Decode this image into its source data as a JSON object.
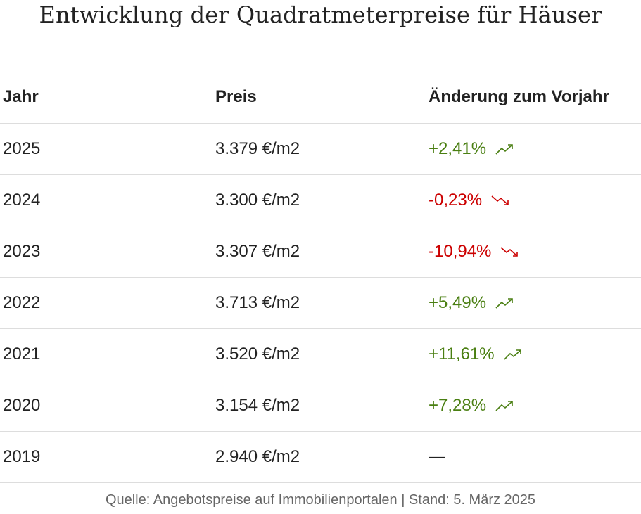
{
  "title": "Entwicklung der Quadratmeterpreise für Häuser",
  "table": {
    "headers": {
      "year": "Jahr",
      "price": "Preis",
      "change": "Änderung zum Vorjahr"
    },
    "rows": [
      {
        "year": "2025",
        "price": "3.379 €/m2",
        "change": "+2,41%",
        "trend": "up"
      },
      {
        "year": "2024",
        "price": "3.300 €/m2",
        "change": "-0,23%",
        "trend": "down"
      },
      {
        "year": "2023",
        "price": "3.307 €/m2",
        "change": "-10,94%",
        "trend": "down"
      },
      {
        "year": "2022",
        "price": "3.713 €/m2",
        "change": "+5,49%",
        "trend": "up"
      },
      {
        "year": "2021",
        "price": "3.520 €/m2",
        "change": "+11,61%",
        "trend": "up"
      },
      {
        "year": "2020",
        "price": "3.154 €/m2",
        "change": "+7,28%",
        "trend": "up"
      },
      {
        "year": "2019",
        "price": "2.940 €/m2",
        "change": "—",
        "trend": "none"
      }
    ]
  },
  "icons": {
    "up": "trend-up-icon",
    "down": "trend-down-icon"
  },
  "colors": {
    "up": "#4a7f12",
    "down": "#cc0000",
    "text": "#222222",
    "muted": "#666666",
    "divider": "#dddddd"
  },
  "source": "Quelle: Angebotspreise auf Immobilienportalen | Stand: 5. März 2025"
}
